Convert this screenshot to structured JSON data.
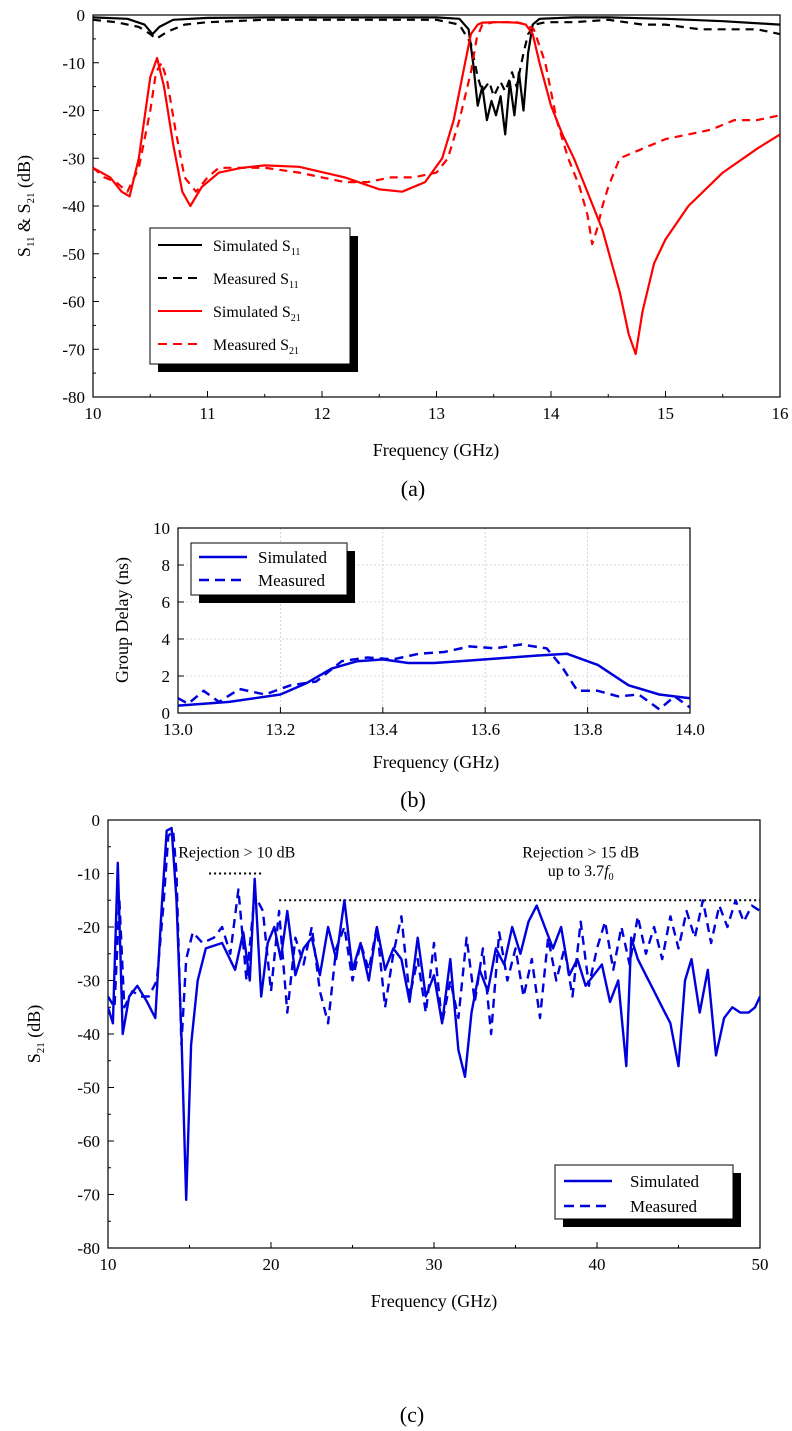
{
  "chart_data": [
    {
      "type": "line",
      "panel_label": "(a)",
      "xlabel": "Frequency (GHz)",
      "ylabel": {
        "base": "S",
        "sub1": "11",
        "mid": " & S",
        "sub2": "21",
        "tail": " (dB)"
      },
      "xlim": [
        10,
        16
      ],
      "ylim": [
        -80,
        0
      ],
      "xticks": [
        10,
        11,
        12,
        13,
        14,
        15,
        16
      ],
      "yticks": [
        0,
        -10,
        -20,
        -30,
        -40,
        -50,
        -60,
        -70,
        -80
      ],
      "grid": false,
      "legend_placement": "lower-left",
      "series": [
        {
          "name": "Simulated S",
          "sub": "11",
          "color": "#000000",
          "dash": "solid",
          "x": [
            10,
            10.3,
            10.45,
            10.52,
            10.58,
            10.7,
            11,
            11.5,
            12,
            12.5,
            13,
            13.2,
            13.28,
            13.32,
            13.36,
            13.4,
            13.44,
            13.48,
            13.52,
            13.56,
            13.6,
            13.64,
            13.68,
            13.72,
            13.76,
            13.8,
            13.84,
            13.9,
            14.2,
            14.5,
            15,
            15.5,
            16
          ],
          "y": [
            -0.5,
            -0.8,
            -2,
            -4,
            -2.5,
            -1,
            -0.6,
            -0.5,
            -0.5,
            -0.5,
            -0.5,
            -0.8,
            -3,
            -10,
            -19,
            -15,
            -22,
            -18,
            -21,
            -17,
            -25,
            -14,
            -21,
            -12,
            -20,
            -8,
            -2,
            -0.8,
            -0.5,
            -0.5,
            -0.8,
            -1.3,
            -2
          ]
        },
        {
          "name": "Measured S",
          "sub": "11",
          "color": "#000000",
          "dash": "dashed",
          "x": [
            10,
            10.2,
            10.4,
            10.5,
            10.55,
            10.65,
            10.8,
            11,
            11.5,
            12,
            12.5,
            13,
            13.2,
            13.3,
            13.36,
            13.4,
            13.46,
            13.5,
            13.56,
            13.6,
            13.66,
            13.7,
            13.76,
            13.8,
            13.86,
            13.95,
            14.2,
            14.5,
            14.8,
            15,
            15.3,
            15.6,
            15.8,
            16
          ],
          "y": [
            -1,
            -1.5,
            -2.5,
            -4,
            -5,
            -3.5,
            -2,
            -1.5,
            -1,
            -1,
            -1,
            -1,
            -2,
            -6,
            -13,
            -16,
            -14,
            -17,
            -14,
            -16,
            -12,
            -15,
            -8,
            -4,
            -2,
            -1.5,
            -1.5,
            -1,
            -2,
            -2,
            -3,
            -3,
            -3,
            -4
          ]
        },
        {
          "name": "Simulated S",
          "sub": "21",
          "color": "#ff0000",
          "dash": "solid",
          "x": [
            10,
            10.15,
            10.25,
            10.32,
            10.4,
            10.5,
            10.56,
            10.62,
            10.7,
            10.78,
            10.85,
            10.95,
            11.1,
            11.3,
            11.5,
            11.8,
            12.2,
            12.5,
            12.7,
            12.9,
            13.05,
            13.15,
            13.25,
            13.3,
            13.36,
            13.4,
            13.5,
            13.6,
            13.7,
            13.78,
            13.84,
            13.9,
            14,
            14.1,
            14.2,
            14.3,
            14.45,
            14.6,
            14.68,
            14.74,
            14.8,
            14.9,
            15,
            15.2,
            15.5,
            15.8,
            16
          ],
          "y": [
            -32,
            -34,
            -37,
            -38,
            -30,
            -13,
            -9,
            -15,
            -27,
            -37,
            -40,
            -36,
            -33,
            -32,
            -31.5,
            -31.8,
            -34,
            -36.5,
            -37,
            -35,
            -30,
            -22,
            -10,
            -4,
            -2,
            -1.6,
            -1.5,
            -1.5,
            -1.6,
            -2,
            -4,
            -10,
            -19,
            -25,
            -30,
            -36,
            -45,
            -58,
            -67,
            -71,
            -62,
            -52,
            -47,
            -40,
            -33,
            -28,
            -25
          ]
        },
        {
          "name": "Measured S",
          "sub": "21",
          "color": "#ff0000",
          "dash": "dashed",
          "x": [
            10,
            10.1,
            10.2,
            10.3,
            10.4,
            10.5,
            10.55,
            10.6,
            10.65,
            10.72,
            10.8,
            10.9,
            11,
            11.1,
            11.3,
            11.5,
            11.8,
            12,
            12.2,
            12.4,
            12.6,
            12.8,
            13,
            13.1,
            13.2,
            13.3,
            13.35,
            13.4,
            13.5,
            13.6,
            13.7,
            13.78,
            13.85,
            13.95,
            14.05,
            14.15,
            14.25,
            14.32,
            14.36,
            14.4,
            14.45,
            14.5,
            14.6,
            14.8,
            15,
            15.2,
            15.4,
            15.6,
            15.8,
            16
          ],
          "y": [
            -32,
            -34,
            -35,
            -37,
            -32,
            -20,
            -12,
            -10,
            -14,
            -24,
            -34,
            -37,
            -34,
            -32,
            -32,
            -32,
            -33,
            -34,
            -35,
            -35,
            -34,
            -34,
            -33,
            -30,
            -22,
            -12,
            -5,
            -2,
            -1.5,
            -1.5,
            -1.5,
            -2,
            -3,
            -10,
            -22,
            -30,
            -36,
            -42,
            -48,
            -45,
            -40,
            -36,
            -30,
            -28,
            -26,
            -25,
            -24,
            -22,
            -22,
            -21
          ]
        }
      ]
    },
    {
      "type": "line",
      "panel_label": "(b)",
      "xlabel": "Frequency (GHz)",
      "ylabel": "Group Delay (ns)",
      "xlim": [
        13.0,
        14.0
      ],
      "ylim": [
        0,
        10
      ],
      "xticks": [
        "13.0",
        "13.2",
        "13.4",
        "13.6",
        "13.8",
        "14.0"
      ],
      "yticks": [
        0,
        2,
        4,
        6,
        8,
        10
      ],
      "grid": true,
      "legend_placement": "top-left",
      "series": [
        {
          "name": "Simulated",
          "color": "#0000dd",
          "dash": "solid",
          "x": [
            13.0,
            13.1,
            13.15,
            13.2,
            13.25,
            13.3,
            13.35,
            13.4,
            13.45,
            13.5,
            13.55,
            13.6,
            13.65,
            13.7,
            13.76,
            13.82,
            13.88,
            13.94,
            14.0
          ],
          "y": [
            0.4,
            0.6,
            0.8,
            1.0,
            1.6,
            2.4,
            2.8,
            2.9,
            2.7,
            2.7,
            2.8,
            2.9,
            3.0,
            3.1,
            3.2,
            2.6,
            1.5,
            1.0,
            0.8
          ]
        },
        {
          "name": "Measured",
          "color": "#0000dd",
          "dash": "dashed",
          "x": [
            13.0,
            13.02,
            13.05,
            13.08,
            13.12,
            13.17,
            13.22,
            13.27,
            13.32,
            13.37,
            13.42,
            13.47,
            13.52,
            13.57,
            13.62,
            13.67,
            13.72,
            13.75,
            13.78,
            13.82,
            13.86,
            13.9,
            13.94,
            13.97,
            14.0
          ],
          "y": [
            0.8,
            0.5,
            1.2,
            0.6,
            1.3,
            1.0,
            1.5,
            1.7,
            2.8,
            3.0,
            2.9,
            3.2,
            3.3,
            3.6,
            3.5,
            3.7,
            3.5,
            2.5,
            1.2,
            1.2,
            0.9,
            1.0,
            0.2,
            0.9,
            0.3
          ]
        }
      ]
    },
    {
      "type": "line",
      "panel_label": "(c)",
      "xlabel": "Frequency (GHz)",
      "ylabel": {
        "base": "S",
        "sub1": "21",
        "tail": " (dB)"
      },
      "xlim": [
        10,
        50
      ],
      "ylim": [
        -80,
        0
      ],
      "xticks": [
        10,
        20,
        30,
        40,
        50
      ],
      "yticks": [
        0,
        -10,
        -20,
        -30,
        -40,
        -50,
        -60,
        -70,
        -80
      ],
      "grid": false,
      "legend_placement": "bottom-right",
      "annotations": [
        {
          "text": "Rejection > 10 dB",
          "x": 17.9,
          "y": -7
        },
        {
          "text": "Rejection > 15 dB",
          "x": 39,
          "y": -7
        },
        {
          "text": "up to 3.7",
          "italic_suffix": "f",
          "sub": "0",
          "x": 39,
          "y": -10.5
        }
      ],
      "reference_lines": [
        {
          "x": [
            16.2,
            19.5
          ],
          "y": -10
        },
        {
          "x": [
            20.5,
            50
          ],
          "y": -15
        }
      ],
      "series": [
        {
          "name": "Simulated",
          "color": "#0000dd",
          "dash": "solid",
          "x": [
            10,
            10.3,
            10.6,
            10.9,
            11.3,
            11.8,
            12.4,
            12.9,
            13.3,
            13.6,
            13.9,
            14.2,
            14.5,
            14.8,
            15.1,
            15.5,
            16,
            17,
            17.8,
            18.3,
            18.7,
            19,
            19.4,
            19.8,
            20.2,
            20.6,
            21,
            21.5,
            22,
            22.5,
            23,
            23.5,
            24,
            24.5,
            25,
            25.5,
            26,
            26.5,
            27,
            27.5,
            28,
            28.5,
            29,
            29.5,
            30,
            30.5,
            31,
            31.5,
            31.9,
            32.3,
            32.8,
            33.3,
            33.8,
            34.3,
            34.8,
            35.3,
            35.8,
            36.3,
            36.8,
            37.3,
            37.8,
            38.3,
            38.8,
            39.3,
            39.8,
            40.3,
            40.8,
            41.3,
            41.8,
            42.1,
            42.5,
            43,
            43.5,
            44,
            44.5,
            45,
            45.4,
            45.8,
            46.3,
            46.8,
            47.3,
            47.8,
            48.3,
            48.8,
            49.3,
            49.7,
            50
          ],
          "y": [
            -35,
            -38,
            -8,
            -40,
            -33,
            -31,
            -34,
            -37,
            -16,
            -2,
            -1.5,
            -15,
            -40,
            -71,
            -42,
            -30,
            -24,
            -23,
            -28,
            -21,
            -30,
            -11,
            -33,
            -23,
            -20,
            -26,
            -17,
            -29,
            -24,
            -22,
            -29,
            -20,
            -26,
            -15,
            -28,
            -23,
            -30,
            -20,
            -28,
            -24,
            -26,
            -34,
            -22,
            -33,
            -29,
            -38,
            -26,
            -43,
            -48,
            -36,
            -28,
            -32,
            -24,
            -27,
            -20,
            -25,
            -19,
            -16,
            -20,
            -24,
            -20,
            -29,
            -26,
            -31,
            -29,
            -27,
            -34,
            -30,
            -46,
            -22,
            -26,
            -29,
            -32,
            -35,
            -38,
            -46,
            -30,
            -26,
            -36,
            -28,
            -44,
            -37,
            -35,
            -36,
            -36,
            -35,
            -33
          ]
        },
        {
          "name": "Measured",
          "color": "#0000dd",
          "dash": "dashed",
          "x": [
            10,
            10.4,
            10.7,
            11,
            11.5,
            12,
            12.5,
            13,
            13.4,
            13.7,
            14,
            14.2,
            14.5,
            14.8,
            15.2,
            15.8,
            16.5,
            17,
            17.5,
            18,
            18.5,
            19,
            19.5,
            20,
            20.5,
            21,
            21.5,
            22,
            22.5,
            23,
            23.5,
            24,
            24.5,
            25,
            25.5,
            26,
            26.5,
            27,
            27.5,
            28,
            28.5,
            29,
            29.5,
            30,
            30.5,
            31,
            31.5,
            32,
            32.5,
            33,
            33.5,
            34,
            34.5,
            35,
            35.5,
            36,
            36.5,
            37,
            37.5,
            38,
            38.5,
            39,
            39.5,
            40,
            40.5,
            41,
            41.5,
            42,
            42.5,
            43,
            43.5,
            44,
            44.5,
            45,
            45.5,
            46,
            46.5,
            47,
            47.5,
            48,
            48.5,
            49,
            49.5,
            50
          ],
          "y": [
            -33,
            -35,
            -15,
            -35,
            -32,
            -33,
            -33,
            -30,
            -16,
            -3,
            -2,
            -10,
            -42,
            -26,
            -21,
            -23,
            -22,
            -20,
            -25,
            -13,
            -30,
            -14,
            -17,
            -32,
            -17,
            -36,
            -22,
            -27,
            -20,
            -32,
            -38,
            -24,
            -20,
            -30,
            -23,
            -28,
            -20,
            -35,
            -25,
            -18,
            -33,
            -26,
            -36,
            -23,
            -38,
            -30,
            -37,
            -22,
            -34,
            -24,
            -40,
            -21,
            -30,
            -24,
            -33,
            -26,
            -37,
            -22,
            -30,
            -24,
            -33,
            -19,
            -31,
            -24,
            -19,
            -28,
            -20,
            -27,
            -18,
            -25,
            -20,
            -26,
            -18,
            -24,
            -17,
            -22,
            -15,
            -23,
            -16,
            -20,
            -15,
            -19,
            -16,
            -17
          ]
        }
      ]
    }
  ]
}
